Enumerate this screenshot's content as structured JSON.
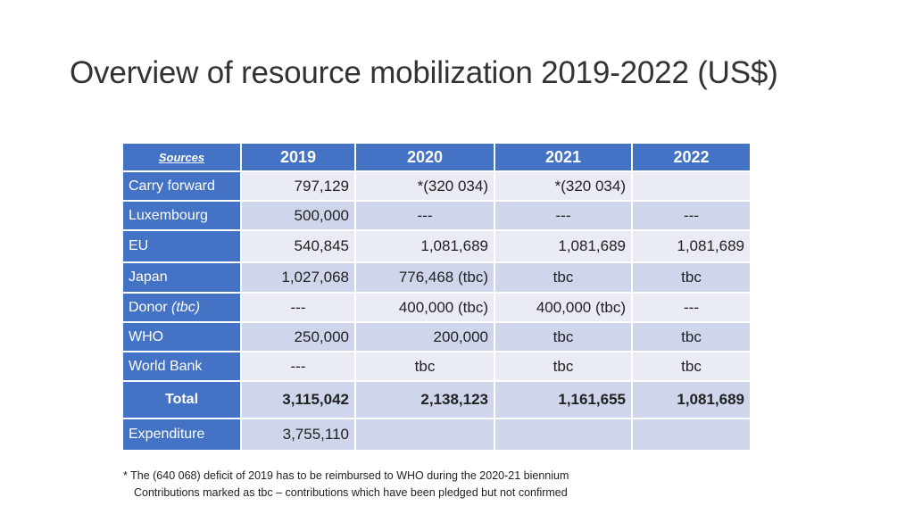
{
  "slide": {
    "title": "Overview of resource mobilization 2019-2022 (US$)"
  },
  "table": {
    "header": {
      "sources": "Sources",
      "years": [
        "2019",
        "2020",
        "2021",
        "2022"
      ]
    },
    "rows": [
      {
        "label": "Carry forward",
        "values": [
          "797,129",
          "*(320 034)",
          "*(320 034)",
          ""
        ]
      },
      {
        "label": "Luxembourg",
        "values": [
          "500,000",
          "---",
          "---",
          "---"
        ]
      },
      {
        "label": "EU",
        "values": [
          "540,845",
          "1,081,689",
          "1,081,689",
          "1,081,689"
        ]
      },
      {
        "label": "Japan",
        "values": [
          "1,027,068",
          "776,468 (tbc)",
          "tbc",
          "tbc"
        ]
      },
      {
        "label": "Donor",
        "label_note": "(tbc)",
        "values": [
          "---",
          "400,000 (tbc)",
          "400,000 (tbc)",
          "---"
        ]
      },
      {
        "label": "WHO",
        "values": [
          "250,000",
          "200,000",
          "tbc",
          "tbc"
        ]
      },
      {
        "label": "World Bank",
        "values": [
          "---",
          "tbc",
          "tbc",
          "tbc"
        ]
      }
    ],
    "total": {
      "label": "Total",
      "values": [
        "3,115,042",
        "2,138,123",
        "1,161,655",
        "1,081,689"
      ]
    },
    "expenditure": {
      "label": "Expenditure",
      "values": [
        "3,755,110",
        "",
        "",
        ""
      ]
    }
  },
  "footnotes": {
    "line1": "* The (640 068) deficit of 2019 has to be reimbursed to WHO during the 2020-21 biennium",
    "line2": "Contributions marked as tbc – contributions which have been pledged but not confirmed"
  },
  "colors": {
    "header_blue": "#4472c4",
    "row_light": "#e9ebf5",
    "row_dark": "#cfd5ea"
  }
}
